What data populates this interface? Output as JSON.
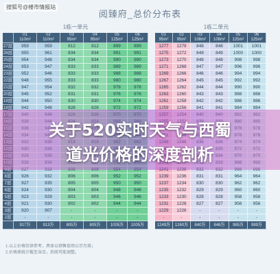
{
  "watermark": "搜狐号@楼市情报站",
  "title": "阅臻府_总价分布表",
  "headline": {
    "line1": "关于520实时天气与西蜀",
    "line2": "道光价格的深度剖析"
  },
  "left_block": {
    "title": "1栋一单元",
    "columns": [
      {
        "no": "01",
        "area": "110m²"
      },
      {
        "no": "02",
        "area": "110m²"
      },
      {
        "no": "03",
        "area": "95m²"
      },
      {
        "no": "04",
        "area": "95m²"
      },
      {
        "no": "05",
        "area": "125m²"
      },
      {
        "no": "06",
        "area": "125m²"
      }
    ],
    "rows": [
      {
        "floor": "27层",
        "cells": [
          "959",
          "959",
          "812",
          "812",
          "899",
          "899"
        ]
      },
      {
        "floor": "26层",
        "cells": [
          "955",
          "961",
          "834",
          "834",
          "991",
          "991"
        ]
      },
      {
        "floor": "25层",
        "cells": [
          "954",
          "948",
          "834",
          "834",
          "990",
          "990"
        ]
      },
      {
        "floor": "24层",
        "cells": [
          "953",
          "947",
          "833",
          "833",
          "989",
          "989"
        ]
      },
      {
        "floor": "23层",
        "cells": [
          "952",
          "946",
          "833",
          "833",
          "988",
          "988"
        ]
      },
      {
        "floor": "22层",
        "cells": [
          "948",
          "955",
          "833",
          "833",
          "980",
          "980"
        ]
      },
      {
        "floor": "21层",
        "cells": [
          "947",
          "954",
          "832",
          "832",
          "978",
          "978"
        ]
      },
      {
        "floor": "20层",
        "cells": [
          "945",
          "952",
          "831",
          "831",
          "976",
          "976"
        ]
      },
      {
        "floor": "19层",
        "cells": [
          "944",
          "950",
          "830",
          "830",
          "974",
          "974"
        ]
      },
      {
        "floor": "18层",
        "cells": [
          "942",
          "948",
          "828",
          "828",
          "972",
          "972"
        ]
      },
      {
        "floor": "17层",
        "cells": [
          "940",
          "946",
          "826",
          "826",
          "970",
          "970"
        ]
      },
      {
        "floor": "16层",
        "cells": [
          "938",
          "944",
          "824",
          "824",
          "968",
          "968"
        ]
      },
      {
        "floor": "15层",
        "cells": [
          "936",
          "942",
          "822",
          "822",
          "966",
          "966"
        ]
      },
      {
        "floor": "14层",
        "cells": [
          "934",
          "940",
          "820",
          "820",
          "964",
          "964"
        ]
      },
      {
        "floor": "13层",
        "cells": [
          "932",
          "938",
          "818",
          "818",
          "962",
          "962"
        ]
      },
      {
        "floor": "12层",
        "cells": [
          "930",
          "936",
          "815",
          "815",
          "960",
          "960"
        ]
      },
      {
        "floor": "11层",
        "cells": [
          "929",
          "935",
          "812",
          "812",
          "958",
          "958"
        ]
      },
      {
        "floor": "10层",
        "cells": [
          "928",
          "934",
          "812",
          "812",
          "956",
          "956"
        ]
      },
      {
        "floor": "9层",
        "cells": [
          "927",
          "933",
          "808",
          "808",
          "954",
          "954"
        ]
      },
      {
        "floor": "8层",
        "cells": [
          "926",
          "932",
          "806",
          "806",
          "952",
          "952"
        ]
      },
      {
        "floor": "7层",
        "cells": [
          "927",
          "935",
          "805",
          "805",
          "950",
          "950"
        ]
      },
      {
        "floor": "6层",
        "cells": [
          "924",
          "930",
          "804",
          "804",
          "948",
          "948"
        ]
      },
      {
        "floor": "5层",
        "cells": [
          "923",
          "929",
          "803",
          "803",
          "946",
          "946"
        ]
      },
      {
        "floor": "4层",
        "cells": [
          "921",
          "930",
          "802",
          "802",
          "944",
          "944"
        ]
      },
      {
        "floor": "3层",
        "cells": [
          "920",
          "907",
          "-",
          "-",
          "-",
          "-"
        ]
      },
      {
        "floor": "2层",
        "cells": [
          "-",
          "-",
          "-",
          "-",
          "-",
          "-"
        ]
      }
    ],
    "footer": [
      "917万",
      "913万",
      "805万",
      "805万",
      "1005万",
      "1005万"
    ]
  },
  "right_block": {
    "title": "1栋二单元",
    "columns": [
      {
        "no": "01",
        "area": "95m²"
      },
      {
        "no": "02",
        "area": "95m²"
      },
      {
        "no": "03",
        "area": "108m²"
      },
      {
        "no": "04",
        "area": "108m²"
      },
      {
        "no": "05",
        "area": "125m²"
      },
      {
        "no": "06",
        "area": "125m²"
      }
    ],
    "rows": [
      {
        "floor": "",
        "cells": [
          "1277",
          "1279",
          "848",
          "848",
          "1001",
          "1001"
        ]
      },
      {
        "floor": "",
        "cells": [
          "1275",
          "1272",
          "849",
          "849",
          "1000",
          "1000"
        ]
      },
      {
        "floor": "",
        "cells": [
          "1273",
          "1270",
          "848",
          "848",
          "998",
          "998"
        ]
      },
      {
        "floor": "",
        "cells": [
          "1271",
          "1268",
          "847",
          "847",
          "996",
          "996"
        ]
      },
      {
        "floor": "",
        "cells": [
          "1269",
          "1266",
          "846",
          "846",
          "994",
          "994"
        ]
      },
      {
        "floor": "",
        "cells": [
          "1267",
          "1264",
          "845",
          "845",
          "992",
          "992"
        ]
      },
      {
        "floor": "",
        "cells": [
          "1265",
          "1262",
          "844",
          "844",
          "990",
          "990"
        ]
      },
      {
        "floor": "",
        "cells": [
          "1263",
          "1260",
          "843",
          "843",
          "988",
          "988"
        ]
      },
      {
        "floor": "",
        "cells": [
          "1261",
          "1258",
          "842",
          "842",
          "986",
          "986"
        ]
      },
      {
        "floor": "",
        "cells": [
          "1259",
          "1256",
          "841",
          "841",
          "984",
          "984"
        ]
      },
      {
        "floor": "",
        "cells": [
          "1257",
          "1254",
          "840",
          "840",
          "982",
          "982"
        ]
      },
      {
        "floor": "",
        "cells": [
          "1255",
          "1252",
          "839",
          "839",
          "980",
          "980"
        ]
      },
      {
        "floor": "",
        "cells": [
          "1253",
          "1250",
          "838",
          "838",
          "978",
          "978"
        ]
      },
      {
        "floor": "",
        "cells": [
          "1251",
          "1248",
          "837",
          "837",
          "976",
          "976"
        ]
      },
      {
        "floor": "",
        "cells": [
          "1249",
          "1246",
          "836",
          "836",
          "974",
          "974"
        ]
      },
      {
        "floor": "",
        "cells": [
          "1247",
          "1244",
          "835",
          "835",
          "972",
          "972"
        ]
      },
      {
        "floor": "",
        "cells": [
          "1245",
          "1242",
          "834",
          "834",
          "970",
          "970"
        ]
      },
      {
        "floor": "",
        "cells": [
          "1243",
          "1240",
          "833",
          "833",
          "968",
          "968"
        ]
      },
      {
        "floor": "",
        "cells": [
          "1241",
          "1238",
          "832",
          "832",
          "966",
          "966"
        ]
      },
      {
        "floor": "",
        "cells": [
          "1239",
          "1236",
          "831",
          "831",
          "964",
          "964"
        ]
      },
      {
        "floor": "",
        "cells": [
          "1237",
          "1234",
          "830",
          "830",
          "962",
          "962"
        ]
      },
      {
        "floor": "",
        "cells": [
          "1235",
          "1232",
          "829",
          "829",
          "960",
          "960"
        ]
      },
      {
        "floor": "",
        "cells": [
          "1233",
          "1230",
          "828",
          "828",
          "958",
          "958"
        ]
      },
      {
        "floor": "",
        "cells": [
          "1231",
          "1228",
          "827",
          "827",
          "956",
          "956"
        ]
      },
      {
        "floor": "",
        "cells": [
          "1229",
          "1226",
          "-",
          "-",
          "-",
          "-"
        ]
      },
      {
        "floor": "",
        "cells": [
          "-",
          "-",
          "-",
          "-",
          "-",
          "-"
        ]
      }
    ],
    "footer": [
      "1249万",
      "1260万",
      "840万",
      "846万",
      "985万",
      "989万"
    ]
  },
  "notes": [
    "1.以上价格仅供参考，具体以销售现场公示为准；",
    "2.价格表统计截至当日，后续可能调整。"
  ]
}
